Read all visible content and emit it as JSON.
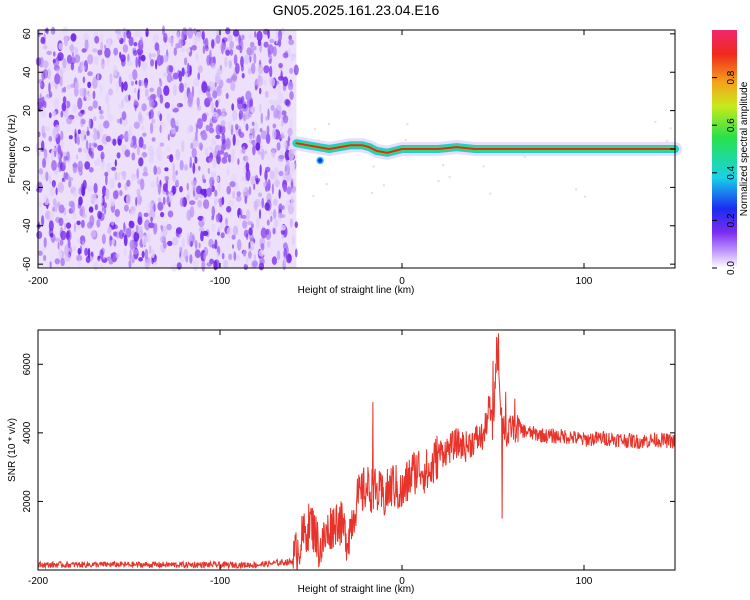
{
  "title": "GN05.2025.161.23.04.E16",
  "chart_data": [
    {
      "type": "heatmap",
      "title": "GN05.2025.161.23.04.E16",
      "xlabel": "Height of straight line (km)",
      "ylabel": "Frequency (Hz)",
      "xlim": [
        -200,
        150
      ],
      "ylim": [
        -62,
        62
      ],
      "x_ticks": [
        -200,
        -100,
        0,
        100
      ],
      "x_tick_labels": [
        "-200",
        "-100",
        "0",
        "100"
      ],
      "y_ticks": [
        -60,
        -40,
        -20,
        0,
        20,
        40,
        60
      ],
      "y_tick_labels": [
        "-60",
        "-40",
        "-20",
        "0",
        "20",
        "40",
        "60"
      ],
      "colorbar": {
        "label": "Normalized spectral amplitude",
        "range": [
          0,
          1
        ],
        "ticks": [
          0.0,
          0.2,
          0.4,
          0.6,
          0.8
        ],
        "tick_labels": [
          "0.0",
          "0.2",
          "0.4",
          "0.6",
          "0.8"
        ]
      },
      "noise_region_x": [
        -200,
        -58
      ],
      "ridge_points": [
        {
          "x": -58,
          "y": 3
        },
        {
          "x": -52,
          "y": 2
        },
        {
          "x": -46,
          "y": 1
        },
        {
          "x": -40,
          "y": 0
        },
        {
          "x": -34,
          "y": 1
        },
        {
          "x": -28,
          "y": 2
        },
        {
          "x": -22,
          "y": 2
        },
        {
          "x": -18,
          "y": 1
        },
        {
          "x": -14,
          "y": -1
        },
        {
          "x": -8,
          "y": -2
        },
        {
          "x": -4,
          "y": -1
        },
        {
          "x": 0,
          "y": 0
        },
        {
          "x": 10,
          "y": 0
        },
        {
          "x": 20,
          "y": 0
        },
        {
          "x": 30,
          "y": 1
        },
        {
          "x": 40,
          "y": 0
        },
        {
          "x": 50,
          "y": 0
        },
        {
          "x": 100,
          "y": 0
        },
        {
          "x": 150,
          "y": 0
        }
      ],
      "colors": {
        "noise": "#7b2cf0",
        "ridge_core": "#e8281e",
        "ridge_mid": "#2ee26a",
        "ridge_outer": "#1fc7f0"
      }
    },
    {
      "type": "line",
      "xlabel": "Height of straight line (km)",
      "ylabel": "SNR (10 * v/v)",
      "xlim": [
        -200,
        150
      ],
      "ylim": [
        0,
        7000
      ],
      "x_ticks": [
        -200,
        -100,
        0,
        100
      ],
      "x_tick_labels": [
        "-200",
        "-100",
        "0",
        "100"
      ],
      "y_ticks": [
        2000,
        4000,
        6000
      ],
      "y_tick_labels": [
        "2000",
        "4000",
        "6000"
      ],
      "series": [
        {
          "color": "#e8332a",
          "x": [
            -200,
            -160,
            -120,
            -80,
            -60,
            -55,
            -50,
            -45,
            -40,
            -35,
            -30,
            -25,
            -20,
            -15,
            -10,
            -5,
            0,
            5,
            10,
            15,
            20,
            25,
            30,
            35,
            40,
            45,
            48,
            50,
            52,
            55,
            58,
            60,
            70,
            80,
            90,
            100,
            110,
            120,
            130,
            140,
            150
          ],
          "y": [
            150,
            160,
            150,
            150,
            250,
            900,
            1400,
            600,
            1200,
            1500,
            900,
            2000,
            2400,
            2300,
            2100,
            2500,
            2200,
            2800,
            3000,
            2800,
            3400,
            3500,
            3700,
            3600,
            3800,
            3900,
            4800,
            4000,
            6500,
            4400,
            3800,
            4200,
            4000,
            3900,
            3900,
            3800,
            3850,
            3800,
            3750,
            3800,
            3750
          ],
          "spikes": [
            {
              "x": -48,
              "y": 1600
            },
            {
              "x": -16,
              "y": 4900
            },
            {
              "x": 50,
              "y": 6100
            },
            {
              "x": 53,
              "y": 6900
            },
            {
              "x": 55,
              "y": 1500
            },
            {
              "x": 57,
              "y": 5200
            },
            {
              "x": 62,
              "y": 5000
            }
          ]
        }
      ]
    }
  ]
}
